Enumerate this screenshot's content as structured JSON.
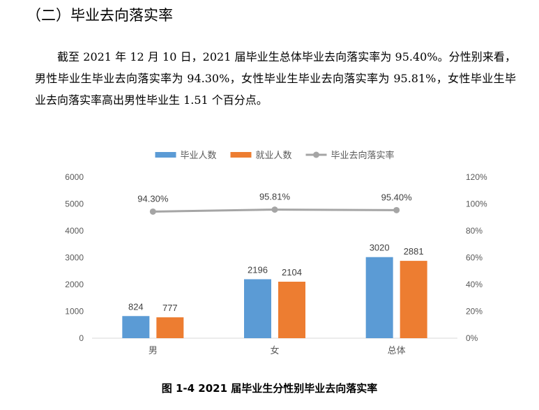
{
  "section_heading": "（二）毕业去向落实率",
  "paragraph": "截至 2021 年 12 月 10 日，2021 届毕业生总体毕业去向落实率为 95.40%。分性别来看，男性毕业生毕业去向落实率为 94.30%，女性毕业生毕业去向落实率为 95.81%，女性毕业生毕业去向落实率高出男性毕业生 1.51 个百分点。",
  "caption": "图 1-4 2021 届毕业生分性别毕业去向落实率",
  "colors": {
    "graduates": "#5b9bd5",
    "employed": "#ed7d31",
    "rate": "#a5a5a5",
    "axis_text": "#595959",
    "axis_line": "#d9d9d9"
  },
  "chart_data": {
    "type": "bar",
    "title": "",
    "categories": [
      "男",
      "女",
      "总体"
    ],
    "series": [
      {
        "name": "毕业人数",
        "type": "bar",
        "axis": "left",
        "values": [
          824,
          2196,
          3020
        ],
        "labels": [
          "824",
          "2196",
          "3020"
        ]
      },
      {
        "name": "就业人数",
        "type": "bar",
        "axis": "left",
        "values": [
          777,
          2104,
          2881
        ],
        "labels": [
          "777",
          "2104",
          "2881"
        ]
      },
      {
        "name": "毕业去向落实率",
        "type": "line",
        "axis": "right",
        "values": [
          94.3,
          95.81,
          95.4
        ],
        "labels": [
          "94.30%",
          "95.81%",
          "95.40%"
        ]
      }
    ],
    "y_left": {
      "min": 0,
      "max": 6000,
      "ticks": [
        "0",
        "1000",
        "2000",
        "3000",
        "4000",
        "5000",
        "6000"
      ]
    },
    "y_right": {
      "min": 0,
      "max": 120,
      "ticks": [
        "0%",
        "20%",
        "40%",
        "60%",
        "80%",
        "100%",
        "120%"
      ]
    },
    "grid": false,
    "legend_position": "top"
  }
}
